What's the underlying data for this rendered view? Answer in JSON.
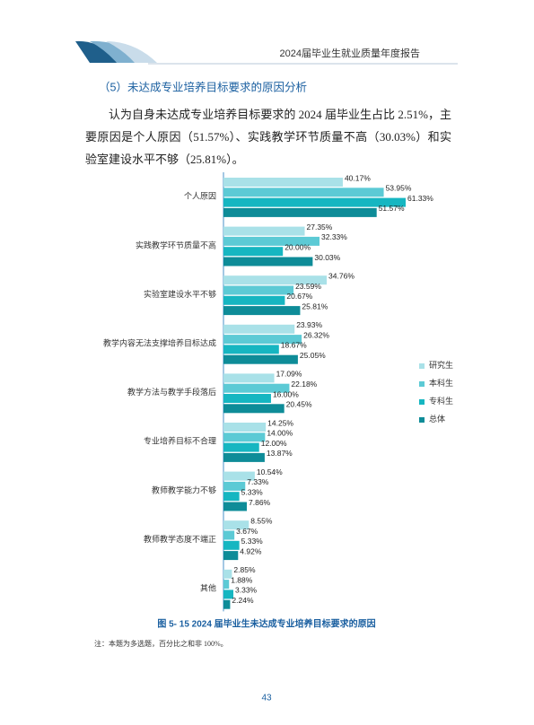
{
  "header": {
    "title": "2024届毕业生就业质量年度报告"
  },
  "section": {
    "heading": "（5）未达成专业培养目标要求的原因分析"
  },
  "paragraph": "认为自身未达成专业培养目标要求的 2024 届毕业生占比 2.51%，主要原因是个人原因（51.57%）、实践教学环节质量不高（30.03%）和实验室建设水平不够（25.81%）。",
  "chart_data": {
    "type": "bar",
    "orientation": "horizontal",
    "title": "图 5- 15  2024 届毕业生未达成专业培养目标要求的原因",
    "note": "注：本题为多选题，百分比之和非 100%。",
    "categories": [
      "个人原因",
      "实践教学环节质量不高",
      "实验室建设水平不够",
      "教学内容无法支撑培养目标达成",
      "教学方法与教学手段落后",
      "专业培养目标不合理",
      "教师教学能力不够",
      "教师教学态度不端正",
      "其他"
    ],
    "series": [
      {
        "name": "研究生",
        "color": "#a9e1e8",
        "values": [
          40.17,
          27.35,
          34.76,
          23.93,
          17.09,
          14.25,
          10.54,
          8.55,
          2.85
        ],
        "value_labels": [
          "40.17%",
          "27.35%",
          "34.76%",
          "23.93%",
          "17.09%",
          "14.25%",
          "10.54%",
          "8.55%",
          "2.85%"
        ]
      },
      {
        "name": "本科生",
        "color": "#5ccad5",
        "values": [
          53.95,
          32.33,
          23.59,
          26.32,
          22.18,
          14.0,
          7.33,
          3.67,
          1.88
        ],
        "value_labels": [
          "53.95%",
          "32.33%",
          "23.59%",
          "26.32%",
          "22.18%",
          "14.00%",
          "7.33%",
          "3.67%",
          "1.88%"
        ]
      },
      {
        "name": "专科生",
        "color": "#16b6c1",
        "values": [
          61.33,
          20.0,
          20.67,
          18.67,
          16.0,
          12.0,
          5.33,
          5.33,
          3.33
        ],
        "value_labels": [
          "61.33%",
          "20.00%",
          "20.67%",
          "18.67%",
          "16.00%",
          "12.00%",
          "5.33%",
          "5.33%",
          "3.33%"
        ]
      },
      {
        "name": "总体",
        "color": "#0e8c98",
        "values": [
          51.57,
          30.03,
          25.81,
          25.05,
          20.45,
          13.87,
          7.86,
          4.92,
          2.24
        ],
        "value_labels": [
          "51.57%",
          "30.03%",
          "25.81%",
          "25.05%",
          "20.45%",
          "13.87%",
          "7.86%",
          "4.92%",
          "2.24%"
        ]
      }
    ],
    "legend": "right"
  },
  "page_number": "43"
}
